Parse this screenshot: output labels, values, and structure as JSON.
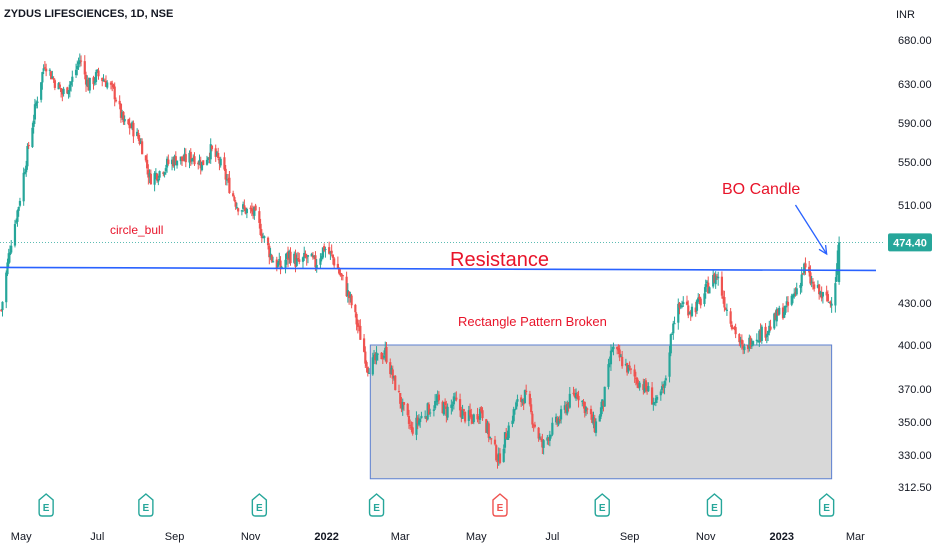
{
  "header": {
    "title": "ZYDUS LIFESCIENCES, 1D, NSE",
    "currency": "INR"
  },
  "colors": {
    "up": "#26a69a",
    "down": "#ef5350",
    "resistance": "#2962ff",
    "rectangle_fill": "#d1d1d1",
    "rectangle_border": "#5b7fd1",
    "annotation_text": "#e8142a",
    "last_price_bg": "#26a69a",
    "earnings_up": "#26a69a",
    "earnings_down": "#ef5350"
  },
  "annotations": {
    "circle_bull": "circle_bull",
    "resistance": "Resistance",
    "rectangle": "Rectangle Pattern Broken",
    "bo_candle": "BO Candle"
  },
  "chart_data": {
    "type": "candlestick",
    "title": "ZYDUS LIFESCIENCES, 1D, NSE",
    "yaxis_unit": "INR",
    "y_ticks": [
      680,
      630,
      590,
      550,
      510,
      470,
      430,
      400,
      370,
      350,
      330,
      312.5
    ],
    "y_tick_labels": [
      "680.00",
      "630.00",
      "590.00",
      "550.00",
      "510.00",
      "470.00",
      "430.00",
      "400.00",
      "370.00",
      "350.00",
      "330.00",
      "312.50"
    ],
    "ylim": [
      303,
      695
    ],
    "x_tick_labels": [
      "May",
      "Jul",
      "Sep",
      "Nov",
      "2022",
      "Mar",
      "May",
      "Jul",
      "Sep",
      "Nov",
      "2023",
      "Mar"
    ],
    "x_tick_dates": [
      "2021-05-01",
      "2021-07-01",
      "2021-09-01",
      "2021-11-01",
      "2022-01-01",
      "2022-03-01",
      "2022-05-01",
      "2022-07-01",
      "2022-09-01",
      "2022-11-01",
      "2023-01-01",
      "2023-03-01"
    ],
    "xlim": [
      "2021-04-14",
      "2023-03-24"
    ],
    "last_price": 474.4,
    "last_price_label": "474.40",
    "resistance_level": 454,
    "rectangle": {
      "x_start": "2022-02-05",
      "x_end": "2023-02-10",
      "y_top": 400,
      "y_bottom": 317
    },
    "bo_arrow": {
      "from": "2023-01-12",
      "to": "2023-02-06",
      "y_from": 510,
      "y_to": 465
    },
    "earnings": [
      {
        "date": "2021-05-21",
        "type": "up"
      },
      {
        "date": "2021-08-09",
        "type": "up"
      },
      {
        "date": "2021-11-08",
        "type": "up"
      },
      {
        "date": "2022-02-10",
        "type": "up"
      },
      {
        "date": "2022-05-20",
        "type": "down"
      },
      {
        "date": "2022-08-10",
        "type": "up"
      },
      {
        "date": "2022-11-08",
        "type": "up"
      },
      {
        "date": "2023-02-06",
        "type": "up"
      }
    ],
    "price_path": [
      [
        "2021-04-15",
        425
      ],
      [
        "2021-04-22",
        470
      ],
      [
        "2021-04-29",
        510
      ],
      [
        "2021-05-06",
        560
      ],
      [
        "2021-05-13",
        610
      ],
      [
        "2021-05-20",
        655
      ],
      [
        "2021-05-27",
        635
      ],
      [
        "2021-06-03",
        620
      ],
      [
        "2021-06-10",
        632
      ],
      [
        "2021-06-17",
        658
      ],
      [
        "2021-06-24",
        628
      ],
      [
        "2021-07-01",
        640
      ],
      [
        "2021-07-08",
        633
      ],
      [
        "2021-07-15",
        620
      ],
      [
        "2021-07-22",
        590
      ],
      [
        "2021-07-29",
        585
      ],
      [
        "2021-08-05",
        570
      ],
      [
        "2021-08-12",
        535
      ],
      [
        "2021-08-19",
        540
      ],
      [
        "2021-08-26",
        548
      ],
      [
        "2021-09-02",
        553
      ],
      [
        "2021-09-09",
        552
      ],
      [
        "2021-09-16",
        556
      ],
      [
        "2021-09-23",
        548
      ],
      [
        "2021-09-30",
        562
      ],
      [
        "2021-10-07",
        550
      ],
      [
        "2021-10-14",
        530
      ],
      [
        "2021-10-21",
        510
      ],
      [
        "2021-10-28",
        505
      ],
      [
        "2021-11-04",
        502
      ],
      [
        "2021-11-11",
        480
      ],
      [
        "2021-11-18",
        462
      ],
      [
        "2021-11-25",
        455
      ],
      [
        "2021-12-02",
        465
      ],
      [
        "2021-12-09",
        458
      ],
      [
        "2021-12-16",
        462
      ],
      [
        "2021-12-23",
        458
      ],
      [
        "2021-12-30",
        470
      ],
      [
        "2022-01-06",
        462
      ],
      [
        "2022-01-13",
        448
      ],
      [
        "2022-01-20",
        432
      ],
      [
        "2022-01-27",
        410
      ],
      [
        "2022-02-03",
        385
      ],
      [
        "2022-02-10",
        390
      ],
      [
        "2022-02-17",
        395
      ],
      [
        "2022-02-24",
        375
      ],
      [
        "2022-03-03",
        358
      ],
      [
        "2022-03-10",
        345
      ],
      [
        "2022-03-17",
        352
      ],
      [
        "2022-03-24",
        358
      ],
      [
        "2022-03-31",
        362
      ],
      [
        "2022-04-07",
        357
      ],
      [
        "2022-04-14",
        362
      ],
      [
        "2022-04-21",
        354
      ],
      [
        "2022-04-28",
        352
      ],
      [
        "2022-05-05",
        358
      ],
      [
        "2022-05-12",
        340
      ],
      [
        "2022-05-19",
        327
      ],
      [
        "2022-05-26",
        345
      ],
      [
        "2022-06-02",
        360
      ],
      [
        "2022-06-09",
        366
      ],
      [
        "2022-06-16",
        350
      ],
      [
        "2022-06-23",
        335
      ],
      [
        "2022-06-30",
        345
      ],
      [
        "2022-07-07",
        352
      ],
      [
        "2022-07-14",
        362
      ],
      [
        "2022-07-21",
        368
      ],
      [
        "2022-07-28",
        358
      ],
      [
        "2022-08-04",
        347
      ],
      [
        "2022-08-11",
        362
      ],
      [
        "2022-08-18",
        398
      ],
      [
        "2022-08-25",
        390
      ],
      [
        "2022-09-01",
        382
      ],
      [
        "2022-09-08",
        375
      ],
      [
        "2022-09-15",
        370
      ],
      [
        "2022-09-22",
        360
      ],
      [
        "2022-09-29",
        372
      ],
      [
        "2022-10-06",
        418
      ],
      [
        "2022-10-13",
        430
      ],
      [
        "2022-10-20",
        425
      ],
      [
        "2022-10-27",
        430
      ],
      [
        "2022-11-03",
        442
      ],
      [
        "2022-11-10",
        450
      ],
      [
        "2022-11-17",
        428
      ],
      [
        "2022-11-24",
        412
      ],
      [
        "2022-12-01",
        395
      ],
      [
        "2022-12-08",
        405
      ],
      [
        "2022-12-15",
        408
      ],
      [
        "2022-12-22",
        412
      ],
      [
        "2022-12-29",
        422
      ],
      [
        "2023-01-05",
        426
      ],
      [
        "2023-01-12",
        438
      ],
      [
        "2023-01-19",
        455
      ],
      [
        "2023-01-26",
        442
      ],
      [
        "2023-02-02",
        435
      ],
      [
        "2023-02-09",
        430
      ],
      [
        "2023-02-13",
        448
      ],
      [
        "2023-02-16",
        474.4
      ]
    ]
  }
}
